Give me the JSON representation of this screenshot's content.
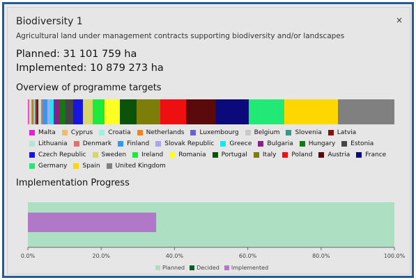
{
  "dialog": {
    "title": "Biodiversity 1",
    "close_label": "×",
    "subtitle": "Agricultural land under management contracts supporting biodiversity and/or landscapes",
    "planned_text": "Planned: 31 101 759 ha",
    "implemented_text": "Implemented: 10 879 273 ha"
  },
  "sections": {
    "overview_title": "Overview of programme targets",
    "progress_title": "Implementation Progress"
  },
  "overview": {
    "countries": [
      {
        "name": "Malta",
        "color": "#e61fd1",
        "share": 0.2
      },
      {
        "name": "Cyprus",
        "color": "#f2bb6b",
        "share": 0.3
      },
      {
        "name": "Croatia",
        "color": "#9cf2e0",
        "share": 0.5
      },
      {
        "name": "Netherlands",
        "color": "#f5821f",
        "share": 0.3
      },
      {
        "name": "Luxembourg",
        "color": "#6b5fd6",
        "share": 0.2
      },
      {
        "name": "Belgium",
        "color": "#c8c8c8",
        "share": 0.4
      },
      {
        "name": "Slovenia",
        "color": "#2e9c88",
        "share": 0.3
      },
      {
        "name": "Latvia",
        "color": "#8b0f0f",
        "share": 0.6
      },
      {
        "name": "Lithuania",
        "color": "#b4e6d2",
        "share": 0.7
      },
      {
        "name": "Denmark",
        "color": "#e0736b",
        "share": 0.4
      },
      {
        "name": "Finland",
        "color": "#3399ee",
        "share": 1.3
      },
      {
        "name": "Slovak Republic",
        "color": "#a9a6f0",
        "share": 0.6
      },
      {
        "name": "Greece",
        "color": "#16e9f2",
        "share": 1.0
      },
      {
        "name": "Bulgaria",
        "color": "#8c1e8c",
        "share": 1.6
      },
      {
        "name": "Hungary",
        "color": "#107a10",
        "share": 1.5
      },
      {
        "name": "Estonia",
        "color": "#444444",
        "share": 2.0
      },
      {
        "name": "Czech Republic",
        "color": "#1616e0",
        "share": 2.6
      },
      {
        "name": "Sweden",
        "color": "#d6d66b",
        "share": 2.6
      },
      {
        "name": "Ireland",
        "color": "#1eea3c",
        "share": 3.1
      },
      {
        "name": "Romania",
        "color": "#ffff22",
        "share": 4.1
      },
      {
        "name": "Portugal",
        "color": "#0b520b",
        "share": 4.3
      },
      {
        "name": "Italy",
        "color": "#7d7d0a",
        "share": 6.3
      },
      {
        "name": "Poland",
        "color": "#ee1010",
        "share": 6.8
      },
      {
        "name": "Austria",
        "color": "#5a0a0a",
        "share": 7.8
      },
      {
        "name": "France",
        "color": "#0a0a7a",
        "share": 8.7
      },
      {
        "name": "Germany",
        "color": "#22e876",
        "share": 9.3
      },
      {
        "name": "Spain",
        "color": "#ffd700",
        "share": 14.2
      },
      {
        "name": "United Kingdom",
        "color": "#808080",
        "share": 14.8
      }
    ]
  },
  "chart_data": {
    "type": "bar",
    "orientation": "horizontal",
    "title": "Implementation Progress",
    "series": [
      {
        "name": "Planned",
        "value": 100.0,
        "color": "#addfc2"
      },
      {
        "name": "Decided",
        "value": 0.0,
        "color": "#0b5a2a"
      },
      {
        "name": "Implemented",
        "value": 35.0,
        "color": "#b178c8"
      }
    ],
    "xlim": [
      0,
      100
    ],
    "ticks": [
      "0.0%",
      "20.0%",
      "40.0%",
      "60.0%",
      "80.0%",
      "100.0%"
    ],
    "tick_values": [
      0,
      20,
      40,
      60,
      80,
      100
    ],
    "legend": [
      "Planned",
      "Decided",
      "Implemented"
    ],
    "legend_position": "bottom"
  }
}
